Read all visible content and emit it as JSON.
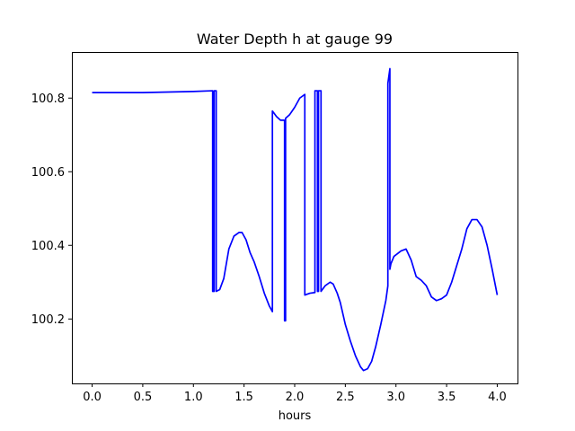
{
  "chart_data": {
    "type": "line",
    "title": "Water Depth h at gauge 99",
    "xlabel": "hours",
    "ylabel": "",
    "xlim": [
      -0.2,
      4.2
    ],
    "ylim": [
      100.025,
      100.925
    ],
    "xticks": [
      {
        "value": 0.0,
        "label": "0.0"
      },
      {
        "value": 0.5,
        "label": "0.5"
      },
      {
        "value": 1.0,
        "label": "1.0"
      },
      {
        "value": 1.5,
        "label": "1.5"
      },
      {
        "value": 2.0,
        "label": "2.0"
      },
      {
        "value": 2.5,
        "label": "2.5"
      },
      {
        "value": 3.0,
        "label": "3.0"
      },
      {
        "value": 3.5,
        "label": "3.5"
      },
      {
        "value": 4.0,
        "label": "4.0"
      }
    ],
    "yticks": [
      {
        "value": 100.2,
        "label": "100.2"
      },
      {
        "value": 100.4,
        "label": "100.4"
      },
      {
        "value": 100.6,
        "label": "100.6"
      },
      {
        "value": 100.8,
        "label": "100.8"
      }
    ],
    "grid": false,
    "series": [
      {
        "color": "#0000ff",
        "points": [
          [
            0.0,
            100.815
          ],
          [
            0.5,
            100.815
          ],
          [
            1.0,
            100.818
          ],
          [
            1.19,
            100.82
          ],
          [
            1.19,
            100.275
          ],
          [
            1.205,
            100.275
          ],
          [
            1.205,
            100.82
          ],
          [
            1.225,
            100.82
          ],
          [
            1.225,
            100.275
          ],
          [
            1.26,
            100.28
          ],
          [
            1.3,
            100.31
          ],
          [
            1.35,
            100.39
          ],
          [
            1.4,
            100.425
          ],
          [
            1.45,
            100.435
          ],
          [
            1.48,
            100.435
          ],
          [
            1.52,
            100.415
          ],
          [
            1.56,
            100.38
          ],
          [
            1.6,
            100.355
          ],
          [
            1.65,
            100.315
          ],
          [
            1.7,
            100.27
          ],
          [
            1.75,
            100.235
          ],
          [
            1.78,
            100.22
          ],
          [
            1.78,
            100.765
          ],
          [
            1.82,
            100.75
          ],
          [
            1.86,
            100.74
          ],
          [
            1.9,
            100.74
          ],
          [
            1.9,
            100.195
          ],
          [
            1.91,
            100.195
          ],
          [
            1.91,
            100.745
          ],
          [
            1.95,
            100.755
          ],
          [
            2.0,
            100.775
          ],
          [
            2.05,
            100.8
          ],
          [
            2.1,
            100.81
          ],
          [
            2.1,
            100.265
          ],
          [
            2.15,
            100.27
          ],
          [
            2.2,
            100.272
          ],
          [
            2.2,
            100.82
          ],
          [
            2.225,
            100.82
          ],
          [
            2.225,
            100.275
          ],
          [
            2.235,
            100.275
          ],
          [
            2.235,
            100.82
          ],
          [
            2.26,
            100.82
          ],
          [
            2.26,
            100.275
          ],
          [
            2.3,
            100.29
          ],
          [
            2.35,
            100.3
          ],
          [
            2.38,
            100.295
          ],
          [
            2.42,
            100.27
          ],
          [
            2.45,
            100.245
          ],
          [
            2.5,
            100.185
          ],
          [
            2.55,
            100.14
          ],
          [
            2.6,
            100.1
          ],
          [
            2.65,
            100.07
          ],
          [
            2.68,
            100.06
          ],
          [
            2.72,
            100.065
          ],
          [
            2.76,
            100.085
          ],
          [
            2.8,
            100.125
          ],
          [
            2.85,
            100.185
          ],
          [
            2.9,
            100.25
          ],
          [
            2.92,
            100.29
          ],
          [
            2.92,
            100.84
          ],
          [
            2.94,
            100.88
          ],
          [
            2.94,
            100.335
          ],
          [
            2.95,
            100.35
          ],
          [
            2.98,
            100.37
          ],
          [
            3.05,
            100.385
          ],
          [
            3.1,
            100.39
          ],
          [
            3.15,
            100.36
          ],
          [
            3.2,
            100.315
          ],
          [
            3.25,
            100.305
          ],
          [
            3.3,
            100.29
          ],
          [
            3.35,
            100.26
          ],
          [
            3.4,
            100.25
          ],
          [
            3.45,
            100.255
          ],
          [
            3.5,
            100.265
          ],
          [
            3.55,
            100.3
          ],
          [
            3.6,
            100.345
          ],
          [
            3.65,
            100.39
          ],
          [
            3.7,
            100.445
          ],
          [
            3.75,
            100.47
          ],
          [
            3.8,
            100.47
          ],
          [
            3.85,
            100.45
          ],
          [
            3.9,
            100.4
          ],
          [
            3.95,
            100.335
          ],
          [
            4.0,
            100.265
          ]
        ]
      }
    ]
  }
}
